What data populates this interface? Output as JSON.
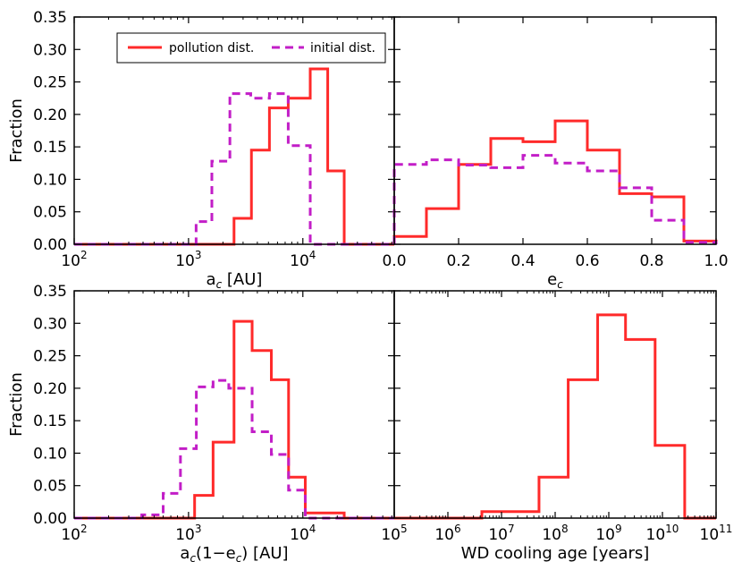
{
  "figure": {
    "y_axis_label": "Fraction",
    "legend": [
      {
        "label": "pollution dist.",
        "color": "#ff2a2a",
        "style": "solid"
      },
      {
        "label": "initial dist.",
        "color": "#c21ec7",
        "style": "dashed"
      }
    ]
  },
  "chart_data": [
    {
      "type": "histogram",
      "panel": "top-left",
      "xlabel": "a_c [AU]",
      "xscale": "log",
      "xlim": [
        100,
        63000
      ],
      "ylim": [
        0,
        0.35
      ],
      "x_ticks": [
        {
          "v": 100,
          "b": "10",
          "e": "2"
        },
        {
          "v": 1000,
          "b": "10",
          "e": "3"
        },
        {
          "v": 10000,
          "b": "10",
          "e": "4"
        }
      ],
      "y_ticks": [
        {
          "v": 0,
          "label": "0.00"
        },
        {
          "v": 0.05,
          "label": "0.05"
        },
        {
          "v": 0.1,
          "label": "0.10"
        },
        {
          "v": 0.15,
          "label": "0.15"
        },
        {
          "v": 0.2,
          "label": "0.20"
        },
        {
          "v": 0.25,
          "label": "0.25"
        },
        {
          "v": 0.3,
          "label": "0.30"
        },
        {
          "v": 0.35,
          "label": "0.35"
        }
      ],
      "series": [
        {
          "name": "pollution dist.",
          "edges": [
            100,
            1165,
            1600,
            2500,
            3550,
            5100,
            7450,
            11600,
            16500,
            23000,
            63000
          ],
          "values": [
            0,
            0,
            0,
            0.04,
            0.145,
            0.21,
            0.225,
            0.27,
            0.113,
            0
          ]
        },
        {
          "name": "initial dist.",
          "edges": [
            100,
            1165,
            1600,
            2300,
            3500,
            5100,
            7450,
            11600,
            16500,
            23000,
            63000
          ],
          "values": [
            0,
            0.035,
            0.128,
            0.232,
            0.225,
            0.232,
            0.152,
            0,
            0,
            0
          ]
        }
      ]
    },
    {
      "type": "histogram",
      "panel": "top-right",
      "xlabel": "e_c",
      "xscale": "linear",
      "xlim": [
        0,
        1
      ],
      "ylim": [
        0,
        0.35
      ],
      "x_ticks": [
        {
          "v": 0,
          "label": "0.0"
        },
        {
          "v": 0.2,
          "label": "0.2"
        },
        {
          "v": 0.4,
          "label": "0.4"
        },
        {
          "v": 0.6,
          "label": "0.6"
        },
        {
          "v": 0.8,
          "label": "0.8"
        },
        {
          "v": 1.0,
          "label": "1.0"
        }
      ],
      "series": [
        {
          "name": "pollution dist.",
          "edges": [
            0,
            0.1,
            0.2,
            0.3,
            0.4,
            0.5,
            0.6,
            0.7,
            0.8,
            0.9,
            1.0
          ],
          "values": [
            0.012,
            0.055,
            0.123,
            0.163,
            0.158,
            0.19,
            0.145,
            0.078,
            0.073,
            0.005
          ]
        },
        {
          "name": "initial dist.",
          "edges": [
            0,
            0.1,
            0.2,
            0.3,
            0.4,
            0.5,
            0.6,
            0.7,
            0.8,
            0.9,
            1.0
          ],
          "values": [
            0.123,
            0.13,
            0.122,
            0.118,
            0.137,
            0.125,
            0.113,
            0.087,
            0.037,
            0.003
          ]
        }
      ]
    },
    {
      "type": "histogram",
      "panel": "bottom-left",
      "xlabel": "a_c(1−e_c) [AU]",
      "xscale": "log",
      "xlim": [
        100,
        63000
      ],
      "ylim": [
        0,
        0.35
      ],
      "x_ticks": [
        {
          "v": 100,
          "b": "10",
          "e": "2"
        },
        {
          "v": 1000,
          "b": "10",
          "e": "3"
        },
        {
          "v": 10000,
          "b": "10",
          "e": "4"
        }
      ],
      "y_ticks": [
        {
          "v": 0,
          "label": "0.00"
        },
        {
          "v": 0.05,
          "label": "0.05"
        },
        {
          "v": 0.1,
          "label": "0.10"
        },
        {
          "v": 0.15,
          "label": "0.15"
        },
        {
          "v": 0.2,
          "label": "0.20"
        },
        {
          "v": 0.25,
          "label": "0.25"
        },
        {
          "v": 0.3,
          "label": "0.30"
        },
        {
          "v": 0.35,
          "label": "0.35"
        }
      ],
      "series": [
        {
          "name": "pollution dist.",
          "edges": [
            100,
            1130,
            1640,
            2500,
            3600,
            5300,
            7500,
            10500,
            23000,
            63000
          ],
          "values": [
            0,
            0.035,
            0.117,
            0.303,
            0.258,
            0.213,
            0.063,
            0.008,
            0
          ]
        },
        {
          "name": "initial dist.",
          "edges": [
            100,
            390,
            600,
            850,
            1170,
            1640,
            2250,
            3600,
            5300,
            7500,
            10500,
            63000
          ],
          "values": [
            0,
            0.005,
            0.038,
            0.107,
            0.202,
            0.212,
            0.2,
            0.133,
            0.098,
            0.043,
            0
          ]
        }
      ]
    },
    {
      "type": "histogram",
      "panel": "bottom-right",
      "xlabel": "WD cooling age [years]",
      "xscale": "log",
      "xlim": [
        100000,
        100000000000
      ],
      "ylim": [
        0,
        0.35
      ],
      "x_ticks": [
        {
          "v": 100000,
          "b": "10",
          "e": "5"
        },
        {
          "v": 1000000,
          "b": "10",
          "e": "6"
        },
        {
          "v": 10000000,
          "b": "10",
          "e": "7"
        },
        {
          "v": 100000000,
          "b": "10",
          "e": "8"
        },
        {
          "v": 1000000000,
          "b": "10",
          "e": "9"
        },
        {
          "v": 10000000000,
          "b": "10",
          "e": "10"
        },
        {
          "v": 100000000000,
          "b": "10",
          "e": "11"
        }
      ],
      "series": [
        {
          "name": "pollution dist.",
          "edges": [
            100000,
            4300000,
            50000000,
            175000000,
            620000000,
            2050000000,
            7300000000,
            26000000000,
            100000000000
          ],
          "values": [
            0,
            0.01,
            0.063,
            0.213,
            0.313,
            0.275,
            0.112,
            0
          ]
        }
      ]
    }
  ]
}
